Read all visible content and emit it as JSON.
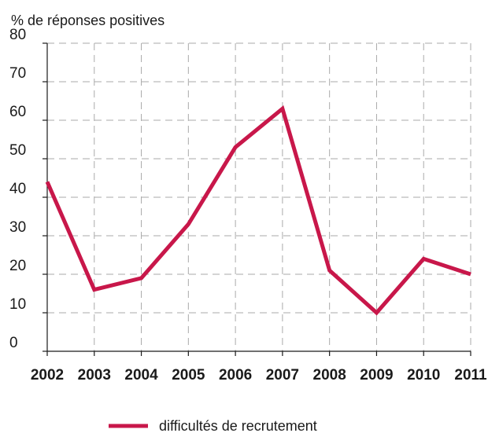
{
  "chart_data": {
    "type": "line",
    "ylabel": "% de réponses positives",
    "xlabel": "",
    "categories": [
      "2002",
      "2003",
      "2004",
      "2005",
      "2006",
      "2007",
      "2008",
      "2009",
      "2010",
      "2011"
    ],
    "yticks": [
      0,
      10,
      20,
      30,
      40,
      50,
      60,
      70,
      80
    ],
    "ylim": [
      0,
      80
    ],
    "grid": true,
    "legend_position": "bottom-center",
    "series": [
      {
        "name": "difficultés de recrutement",
        "color": "#c8174a",
        "values": [
          44,
          16,
          19,
          33,
          53,
          63,
          21,
          10,
          24,
          20
        ]
      }
    ]
  }
}
